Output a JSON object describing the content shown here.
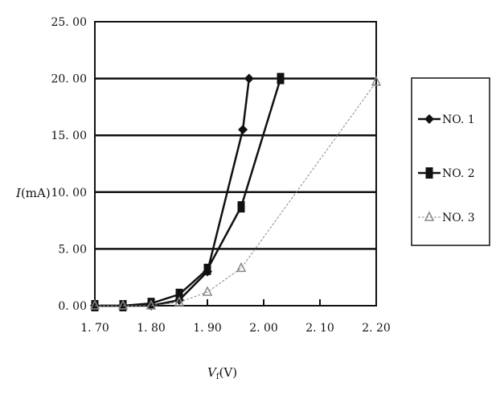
{
  "chart_data": {
    "type": "line",
    "xlabel": "V_f(V)",
    "xlabel_main": "V",
    "xlabel_sub": "f",
    "xlabel_unit": "(V)",
    "ylabel_main": "I",
    "ylabel_unit": "(mA)",
    "xlim": [
      1.7,
      2.2
    ],
    "ylim": [
      0,
      25
    ],
    "x_ticks": [
      "1.70",
      "1.80",
      "1.90",
      "2.00",
      "2.10",
      "2.20"
    ],
    "y_ticks": [
      "0.00",
      "5.00",
      "10.00",
      "15.00",
      "20.00",
      "25.00"
    ],
    "grid": "horizontal",
    "legend_position": "right",
    "series": [
      {
        "name": "NO.1",
        "marker": "diamond",
        "color": "#111111",
        "dashed": false,
        "x": [
          1.7,
          1.75,
          1.8,
          1.85,
          1.9,
          1.963,
          1.974
        ],
        "y": [
          0,
          0,
          0,
          0.5,
          3.0,
          15.5,
          20.0
        ]
      },
      {
        "name": "NO.2",
        "marker": "square",
        "color": "#111111",
        "dashed": false,
        "x": [
          1.7,
          1.75,
          1.8,
          1.85,
          1.9,
          1.96,
          2.03
        ],
        "y": [
          0,
          0,
          0.2,
          1.0,
          3.2,
          8.7,
          20.0
        ]
      },
      {
        "name": "NO.3",
        "marker": "triangle",
        "color": "#888888",
        "dashed": true,
        "x": [
          1.7,
          1.75,
          1.8,
          1.85,
          1.9,
          1.96,
          2.2
        ],
        "y": [
          0,
          0,
          0,
          0.3,
          1.2,
          3.3,
          19.7
        ]
      }
    ]
  }
}
